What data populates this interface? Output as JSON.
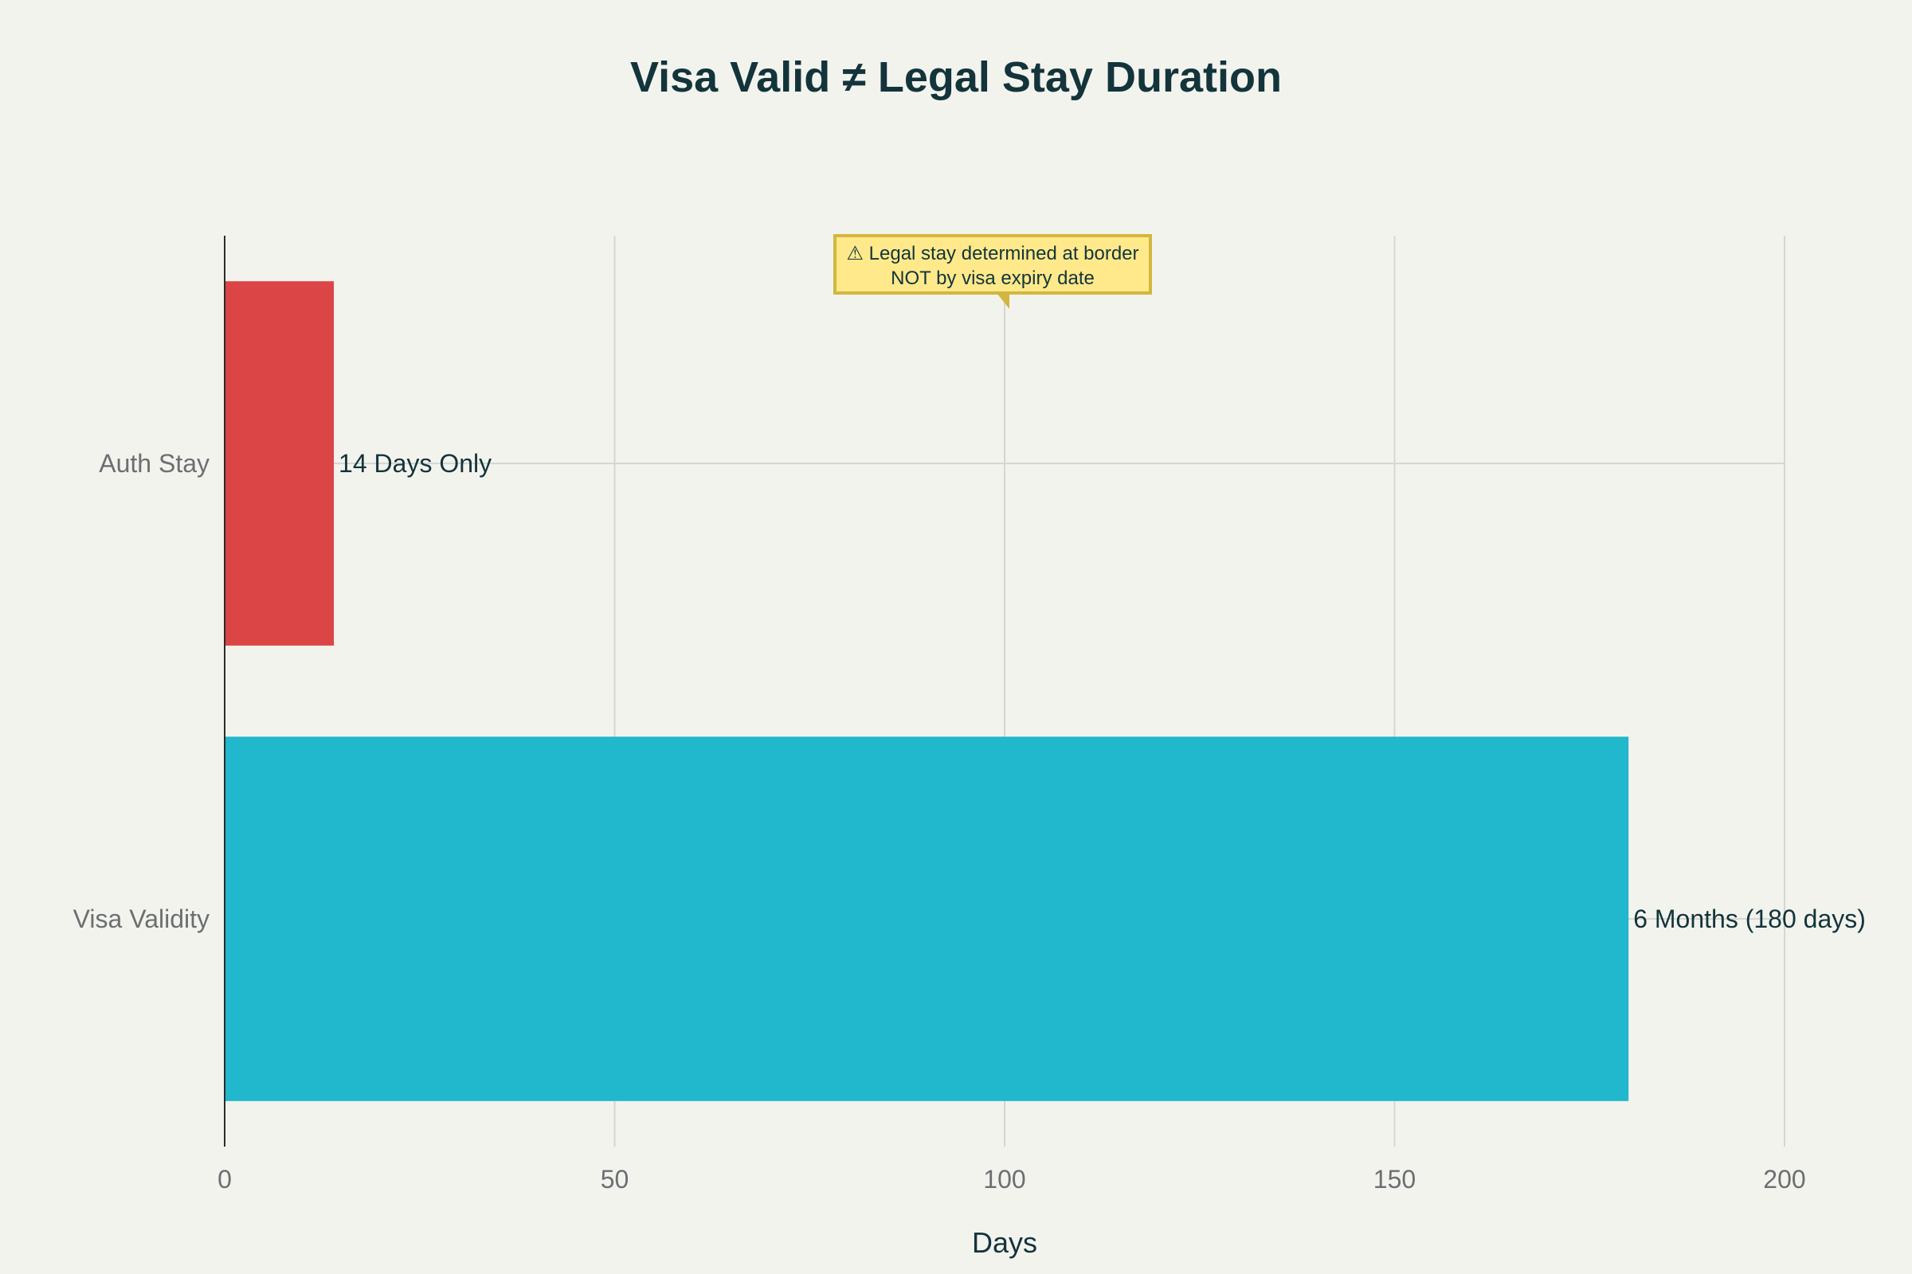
{
  "chart_data": {
    "type": "bar",
    "orientation": "horizontal",
    "title": "Visa Valid ≠ Legal Stay Duration",
    "xlabel": "Days",
    "ylabel": "",
    "xlim": [
      0,
      200
    ],
    "x_ticks": [
      0,
      50,
      100,
      150,
      200
    ],
    "grid": true,
    "categories": [
      "Auth Stay",
      "Visa Validity"
    ],
    "values": [
      14,
      180
    ],
    "data_labels": [
      "14 Days Only",
      "6 Months (180 days)"
    ],
    "colors": [
      "#db4545",
      "#21b7cc"
    ],
    "annotation": {
      "lines": [
        "⚠ Legal stay determined at border",
        "NOT by visa expiry date"
      ],
      "x": 100,
      "background": "#ffe98a",
      "border": "#d3b63e"
    }
  }
}
